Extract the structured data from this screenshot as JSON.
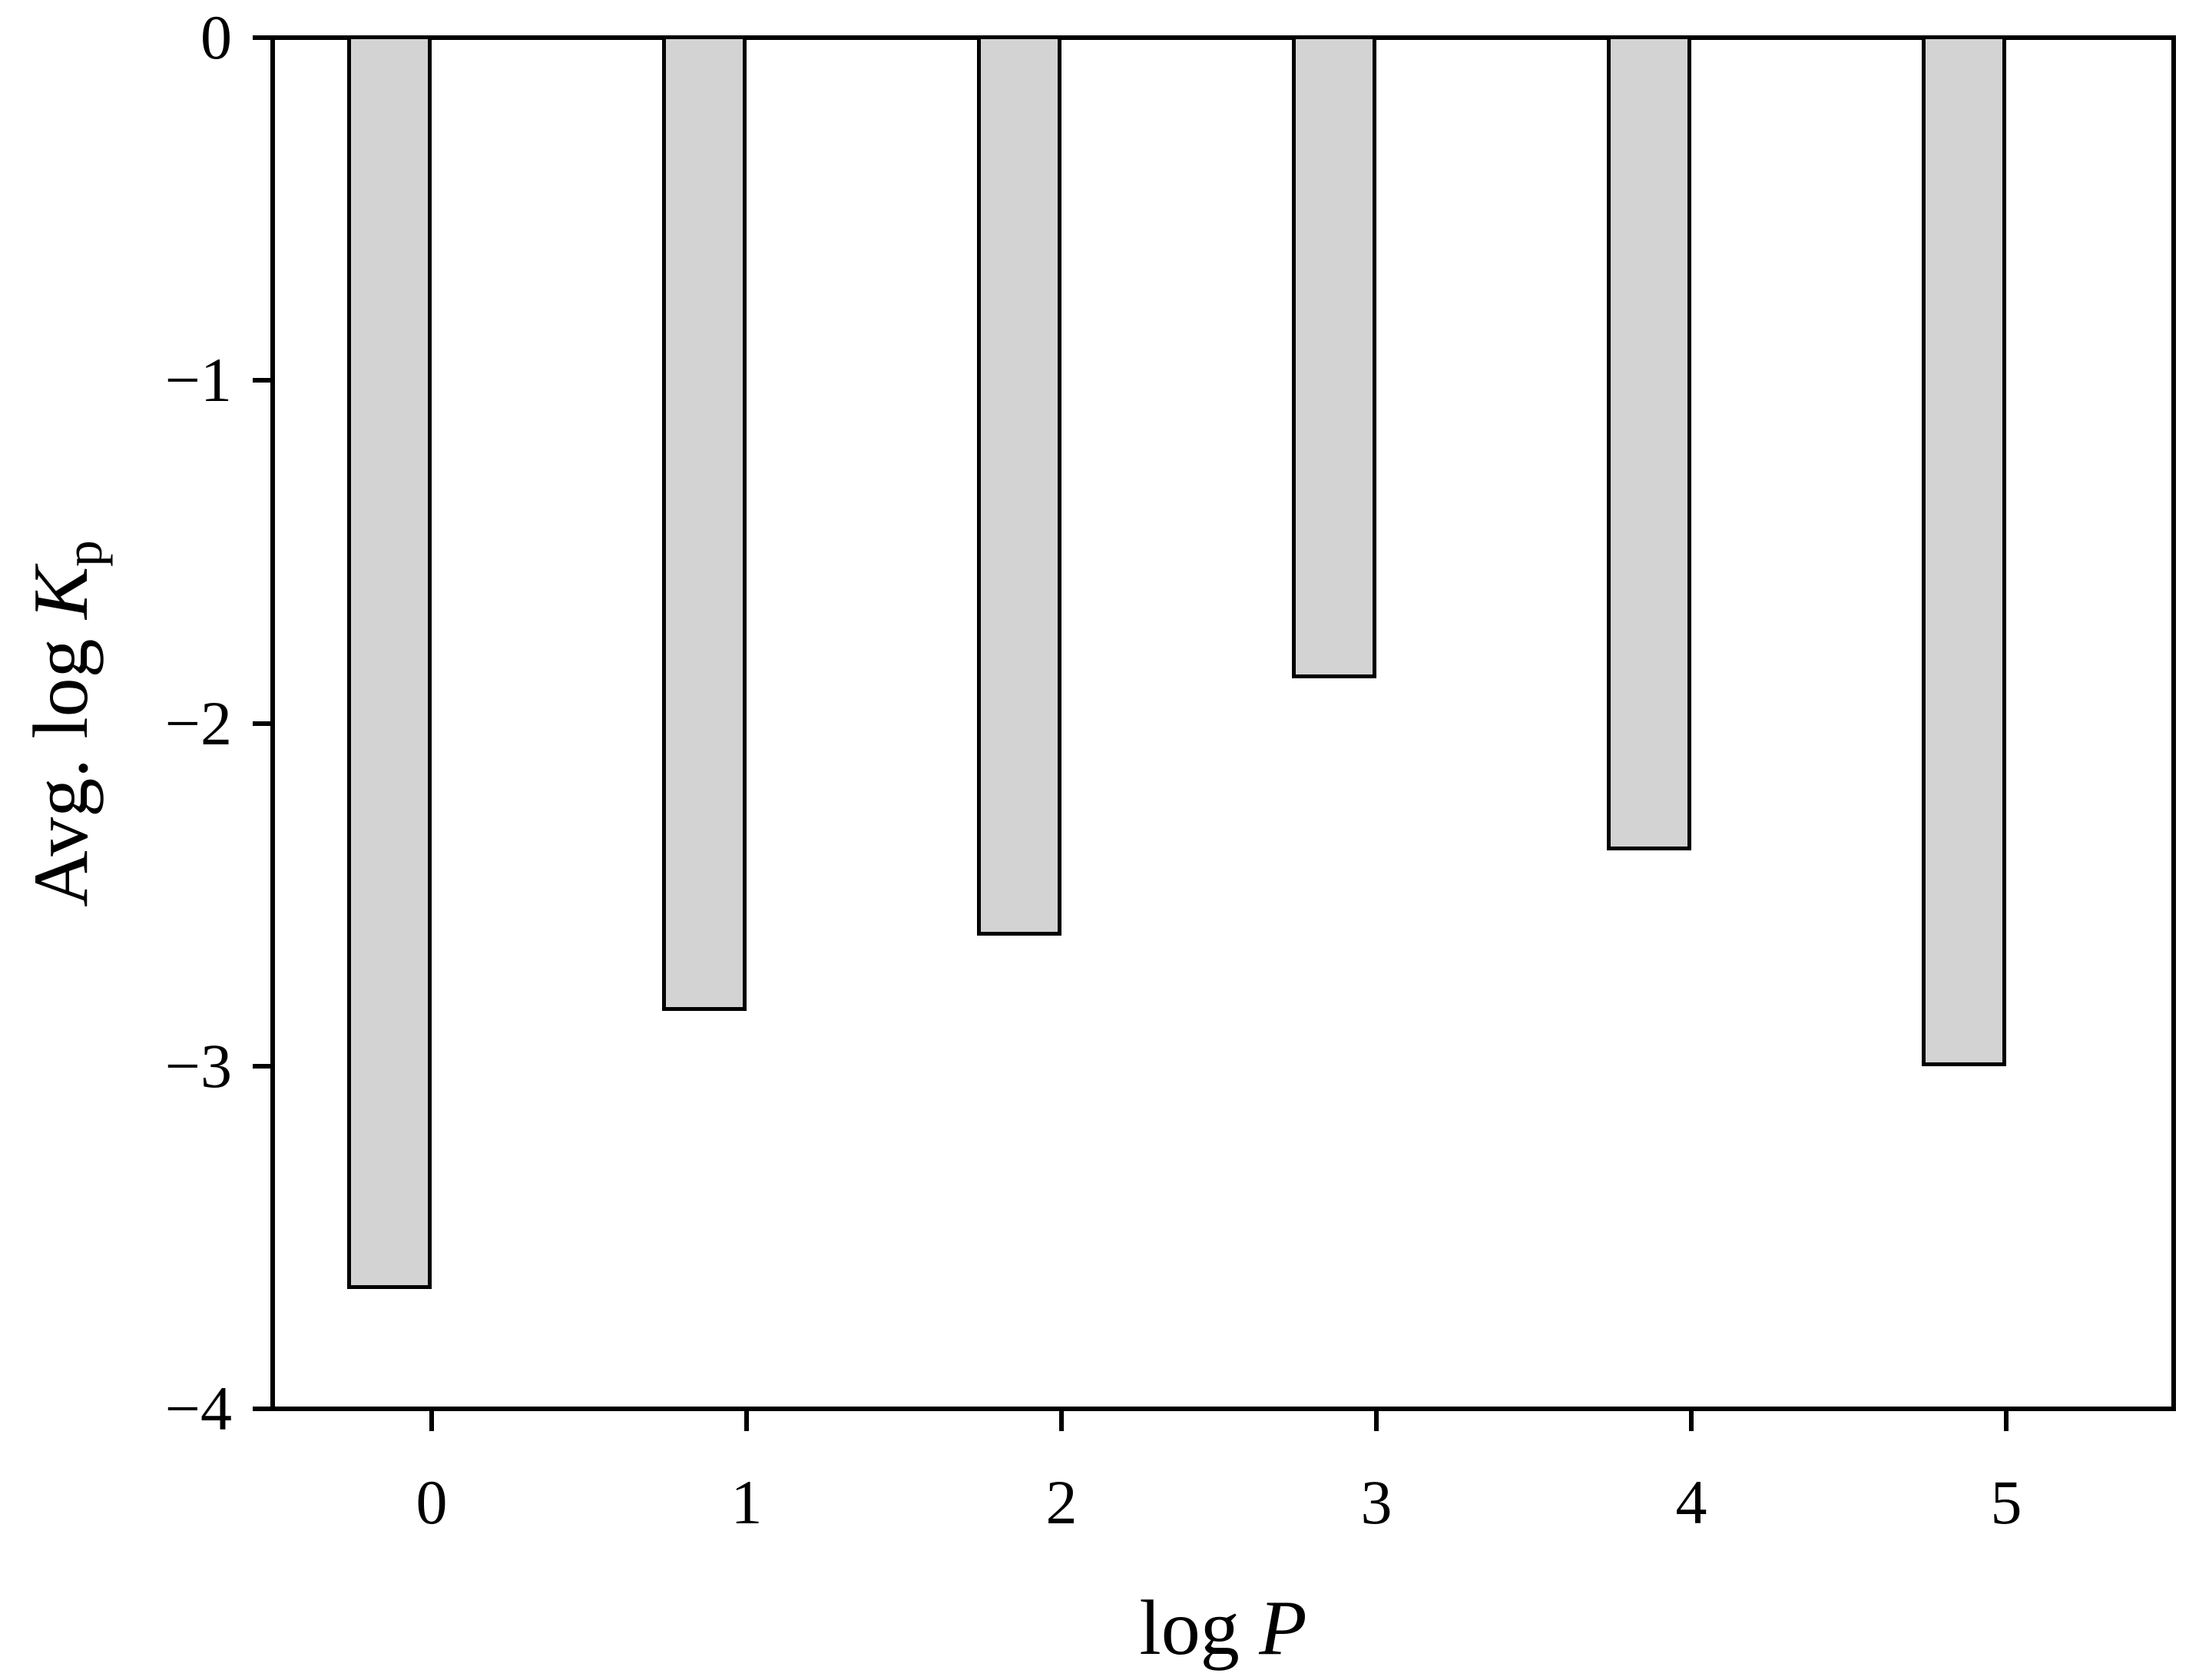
{
  "figure": {
    "background": "#ffffff",
    "text_color": "#000000"
  },
  "chart_data": {
    "type": "bar",
    "orientation": "vertical",
    "title": "",
    "xlabel": "log P",
    "ylabel": "Avg. log K_p",
    "xlabel_parts": {
      "prefix": "log ",
      "var": "P"
    },
    "ylabel_parts": {
      "prefix": "Avg. log ",
      "var": "K",
      "sub": "p"
    },
    "categories": [
      "0",
      "1",
      "2",
      "3",
      "4",
      "5"
    ],
    "values": [
      -3.65,
      -2.84,
      -2.62,
      -1.87,
      -2.37,
      -3.0
    ],
    "ylim": [
      -4,
      0
    ],
    "yticks": [
      0,
      -1,
      -2,
      -3,
      -4
    ],
    "ytick_labels": [
      "0",
      "−1",
      "−2",
      "−3",
      "−4"
    ],
    "xtick_labels": [
      "0",
      "1",
      "2",
      "3",
      "4",
      "5"
    ],
    "grid": false,
    "legend": null,
    "bar_color": "#d3d3d3",
    "bar_edge_color": "#000000",
    "axis_color": "#000000"
  }
}
